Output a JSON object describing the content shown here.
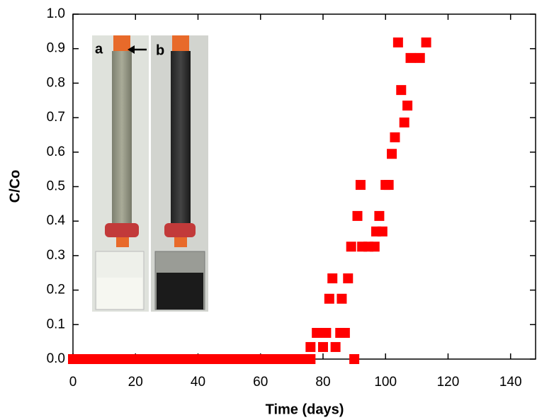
{
  "chart_data": {
    "type": "scatter",
    "xlabel": "Time (days)",
    "ylabel": "C/Co",
    "inset_labels": [
      "a",
      "b"
    ],
    "color": "#ff0000",
    "x": [
      0,
      2,
      4,
      6,
      8,
      10,
      12,
      14,
      16,
      18,
      20,
      22,
      24,
      26,
      28,
      30,
      32,
      34,
      36,
      38,
      40,
      42,
      44,
      46,
      48,
      50,
      52,
      54,
      56,
      58,
      60,
      62,
      64,
      66,
      68,
      70,
      72,
      74,
      76,
      90,
      76,
      80,
      84,
      78,
      81,
      85.5,
      87,
      82,
      86,
      83,
      88,
      89,
      92.5,
      94.5,
      96.5,
      97,
      99,
      91,
      98,
      92,
      100,
      101,
      102,
      103,
      106,
      107,
      105,
      108,
      111,
      104,
      113
    ],
    "values": [
      0,
      0,
      0,
      0,
      0,
      0,
      0,
      0,
      0,
      0,
      0,
      0,
      0,
      0,
      0,
      0,
      0,
      0,
      0,
      0,
      0,
      0,
      0,
      0,
      0,
      0,
      0,
      0,
      0,
      0,
      0,
      0,
      0,
      0,
      0,
      0,
      0,
      0,
      0,
      0,
      0.035,
      0.035,
      0.035,
      0.076,
      0.076,
      0.076,
      0.076,
      0.175,
      0.175,
      0.234,
      0.234,
      0.326,
      0.326,
      0.326,
      0.326,
      0.37,
      0.37,
      0.415,
      0.415,
      0.505,
      0.505,
      0.505,
      0.595,
      0.643,
      0.686,
      0.735,
      0.78,
      0.873,
      0.873,
      0.918,
      0.918
    ],
    "xlim": [
      0,
      148
    ],
    "ylim": [
      0,
      1
    ],
    "xticks": [
      0,
      20,
      40,
      60,
      80,
      100,
      120,
      140
    ],
    "yticks": [
      {
        "value": 0,
        "label": "0.0"
      },
      0.1,
      0.2,
      0.3,
      0.4,
      0.5,
      0.6,
      0.7,
      0.8,
      0.9,
      {
        "value": 1,
        "label": "1.0"
      }
    ]
  }
}
